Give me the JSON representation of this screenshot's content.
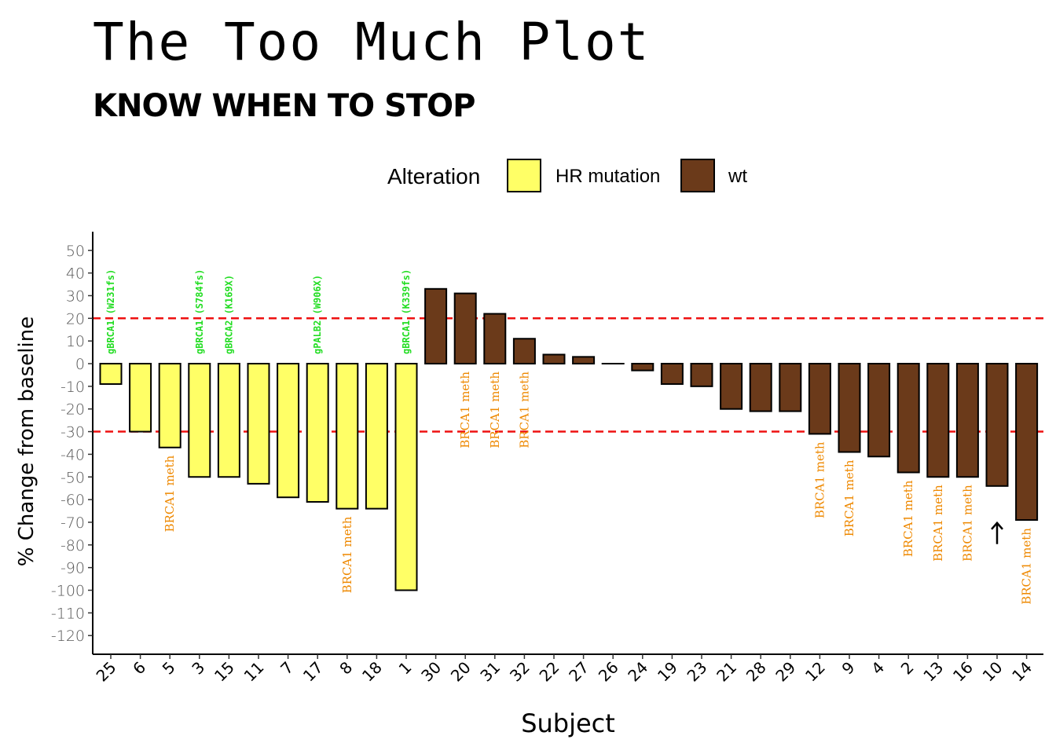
{
  "chart_data": {
    "type": "bar",
    "title": "The Too Much Plot",
    "subtitle": "KNOW WHEN TO STOP",
    "xlabel": "Subject",
    "ylabel": "% Change from baseline",
    "ylim": [
      -120,
      50
    ],
    "yticks": [
      50,
      40,
      30,
      20,
      10,
      0,
      -10,
      -20,
      -30,
      -40,
      -50,
      -60,
      -70,
      -80,
      -90,
      -100,
      -110,
      -120
    ],
    "grid": false,
    "legend": {
      "title": "Alteration",
      "position": "top",
      "entries": [
        {
          "label": "HR mutation",
          "color": "#ffff66"
        },
        {
          "label": "wt",
          "color": "#6b3a1a"
        }
      ]
    },
    "reference_lines": [
      20,
      -30
    ],
    "reference_line_color": "#ee1111",
    "categories": [
      "25",
      "6",
      "5",
      "3",
      "15",
      "11",
      "7",
      "17",
      "8",
      "18",
      "1",
      "30",
      "20",
      "31",
      "32",
      "22",
      "27",
      "26",
      "24",
      "19",
      "23",
      "21",
      "28",
      "29",
      "12",
      "9",
      "4",
      "2",
      "13",
      "16",
      "10",
      "14"
    ],
    "values": [
      -9,
      -30,
      -37,
      -50,
      -50,
      -53,
      -59,
      -61,
      -64,
      -64,
      -100,
      33,
      31,
      22,
      11,
      4,
      3,
      0,
      -3,
      -9,
      -10,
      -20,
      -21,
      -21,
      -31,
      -39,
      -41,
      -48,
      -50,
      -50,
      -54,
      -69
    ],
    "groups": [
      "HR mutation",
      "HR mutation",
      "HR mutation",
      "HR mutation",
      "HR mutation",
      "HR mutation",
      "HR mutation",
      "HR mutation",
      "HR mutation",
      "HR mutation",
      "HR mutation",
      "wt",
      "wt",
      "wt",
      "wt",
      "wt",
      "wt",
      "wt",
      "wt",
      "wt",
      "wt",
      "wt",
      "wt",
      "wt",
      "wt",
      "wt",
      "wt",
      "wt",
      "wt",
      "wt",
      "wt",
      "wt"
    ],
    "gene_annotations": [
      {
        "subject": "25",
        "text": "gBRCA1 (W231fs)"
      },
      {
        "subject": "3",
        "text": "gBRCA1 (S784fs)"
      },
      {
        "subject": "15",
        "text": "gBRCA2 (K169X)"
      },
      {
        "subject": "17",
        "text": "gPALB2 (W906X)"
      },
      {
        "subject": "1",
        "text": "gBRCA1 (K339fs)"
      }
    ],
    "methylation_annotations": [
      {
        "subject": "5",
        "text": "BRCA1 meth"
      },
      {
        "subject": "8",
        "text": "BRCA1 meth"
      },
      {
        "subject": "20",
        "text": "BRCA1 meth"
      },
      {
        "subject": "31",
        "text": "BRCA1 meth"
      },
      {
        "subject": "32",
        "text": "BRCA1 meth"
      },
      {
        "subject": "12",
        "text": "BRCA1 meth"
      },
      {
        "subject": "9",
        "text": "BRCA1 meth"
      },
      {
        "subject": "2",
        "text": "BRCA1 meth"
      },
      {
        "subject": "13",
        "text": "BRCA1 meth"
      },
      {
        "subject": "16",
        "text": "BRCA1 meth"
      },
      {
        "subject": "14",
        "text": "BRCA1 meth"
      }
    ],
    "arrow_annotations": [
      {
        "subject": "10",
        "direction": "up"
      }
    ]
  }
}
